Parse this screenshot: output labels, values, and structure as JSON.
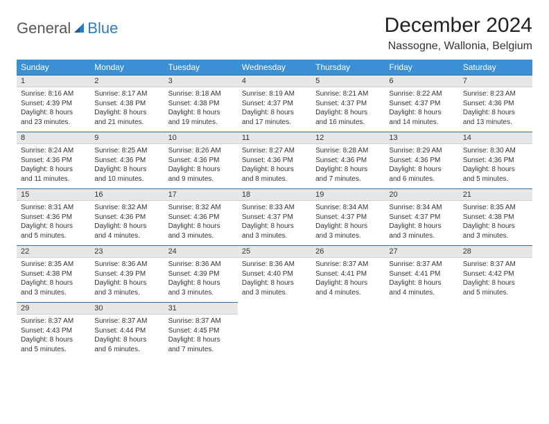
{
  "logo": {
    "general": "General",
    "blue": "Blue"
  },
  "title": "December 2024",
  "location": "Nassogne, Wallonia, Belgium",
  "colors": {
    "header_bg": "#3b8fd4",
    "header_text": "#ffffff",
    "daynum_bg": "#e7e7e7",
    "row_border": "#2f6fa8",
    "logo_blue": "#2f7bbf",
    "logo_gray": "#555555"
  },
  "weekdays": [
    "Sunday",
    "Monday",
    "Tuesday",
    "Wednesday",
    "Thursday",
    "Friday",
    "Saturday"
  ],
  "weeks": [
    [
      {
        "n": "1",
        "sunrise": "Sunrise: 8:16 AM",
        "sunset": "Sunset: 4:39 PM",
        "daylight": "Daylight: 8 hours and 23 minutes."
      },
      {
        "n": "2",
        "sunrise": "Sunrise: 8:17 AM",
        "sunset": "Sunset: 4:38 PM",
        "daylight": "Daylight: 8 hours and 21 minutes."
      },
      {
        "n": "3",
        "sunrise": "Sunrise: 8:18 AM",
        "sunset": "Sunset: 4:38 PM",
        "daylight": "Daylight: 8 hours and 19 minutes."
      },
      {
        "n": "4",
        "sunrise": "Sunrise: 8:19 AM",
        "sunset": "Sunset: 4:37 PM",
        "daylight": "Daylight: 8 hours and 17 minutes."
      },
      {
        "n": "5",
        "sunrise": "Sunrise: 8:21 AM",
        "sunset": "Sunset: 4:37 PM",
        "daylight": "Daylight: 8 hours and 16 minutes."
      },
      {
        "n": "6",
        "sunrise": "Sunrise: 8:22 AM",
        "sunset": "Sunset: 4:37 PM",
        "daylight": "Daylight: 8 hours and 14 minutes."
      },
      {
        "n": "7",
        "sunrise": "Sunrise: 8:23 AM",
        "sunset": "Sunset: 4:36 PM",
        "daylight": "Daylight: 8 hours and 13 minutes."
      }
    ],
    [
      {
        "n": "8",
        "sunrise": "Sunrise: 8:24 AM",
        "sunset": "Sunset: 4:36 PM",
        "daylight": "Daylight: 8 hours and 11 minutes."
      },
      {
        "n": "9",
        "sunrise": "Sunrise: 8:25 AM",
        "sunset": "Sunset: 4:36 PM",
        "daylight": "Daylight: 8 hours and 10 minutes."
      },
      {
        "n": "10",
        "sunrise": "Sunrise: 8:26 AM",
        "sunset": "Sunset: 4:36 PM",
        "daylight": "Daylight: 8 hours and 9 minutes."
      },
      {
        "n": "11",
        "sunrise": "Sunrise: 8:27 AM",
        "sunset": "Sunset: 4:36 PM",
        "daylight": "Daylight: 8 hours and 8 minutes."
      },
      {
        "n": "12",
        "sunrise": "Sunrise: 8:28 AM",
        "sunset": "Sunset: 4:36 PM",
        "daylight": "Daylight: 8 hours and 7 minutes."
      },
      {
        "n": "13",
        "sunrise": "Sunrise: 8:29 AM",
        "sunset": "Sunset: 4:36 PM",
        "daylight": "Daylight: 8 hours and 6 minutes."
      },
      {
        "n": "14",
        "sunrise": "Sunrise: 8:30 AM",
        "sunset": "Sunset: 4:36 PM",
        "daylight": "Daylight: 8 hours and 5 minutes."
      }
    ],
    [
      {
        "n": "15",
        "sunrise": "Sunrise: 8:31 AM",
        "sunset": "Sunset: 4:36 PM",
        "daylight": "Daylight: 8 hours and 5 minutes."
      },
      {
        "n": "16",
        "sunrise": "Sunrise: 8:32 AM",
        "sunset": "Sunset: 4:36 PM",
        "daylight": "Daylight: 8 hours and 4 minutes."
      },
      {
        "n": "17",
        "sunrise": "Sunrise: 8:32 AM",
        "sunset": "Sunset: 4:36 PM",
        "daylight": "Daylight: 8 hours and 3 minutes."
      },
      {
        "n": "18",
        "sunrise": "Sunrise: 8:33 AM",
        "sunset": "Sunset: 4:37 PM",
        "daylight": "Daylight: 8 hours and 3 minutes."
      },
      {
        "n": "19",
        "sunrise": "Sunrise: 8:34 AM",
        "sunset": "Sunset: 4:37 PM",
        "daylight": "Daylight: 8 hours and 3 minutes."
      },
      {
        "n": "20",
        "sunrise": "Sunrise: 8:34 AM",
        "sunset": "Sunset: 4:37 PM",
        "daylight": "Daylight: 8 hours and 3 minutes."
      },
      {
        "n": "21",
        "sunrise": "Sunrise: 8:35 AM",
        "sunset": "Sunset: 4:38 PM",
        "daylight": "Daylight: 8 hours and 3 minutes."
      }
    ],
    [
      {
        "n": "22",
        "sunrise": "Sunrise: 8:35 AM",
        "sunset": "Sunset: 4:38 PM",
        "daylight": "Daylight: 8 hours and 3 minutes."
      },
      {
        "n": "23",
        "sunrise": "Sunrise: 8:36 AM",
        "sunset": "Sunset: 4:39 PM",
        "daylight": "Daylight: 8 hours and 3 minutes."
      },
      {
        "n": "24",
        "sunrise": "Sunrise: 8:36 AM",
        "sunset": "Sunset: 4:39 PM",
        "daylight": "Daylight: 8 hours and 3 minutes."
      },
      {
        "n": "25",
        "sunrise": "Sunrise: 8:36 AM",
        "sunset": "Sunset: 4:40 PM",
        "daylight": "Daylight: 8 hours and 3 minutes."
      },
      {
        "n": "26",
        "sunrise": "Sunrise: 8:37 AM",
        "sunset": "Sunset: 4:41 PM",
        "daylight": "Daylight: 8 hours and 4 minutes."
      },
      {
        "n": "27",
        "sunrise": "Sunrise: 8:37 AM",
        "sunset": "Sunset: 4:41 PM",
        "daylight": "Daylight: 8 hours and 4 minutes."
      },
      {
        "n": "28",
        "sunrise": "Sunrise: 8:37 AM",
        "sunset": "Sunset: 4:42 PM",
        "daylight": "Daylight: 8 hours and 5 minutes."
      }
    ],
    [
      {
        "n": "29",
        "sunrise": "Sunrise: 8:37 AM",
        "sunset": "Sunset: 4:43 PM",
        "daylight": "Daylight: 8 hours and 5 minutes."
      },
      {
        "n": "30",
        "sunrise": "Sunrise: 8:37 AM",
        "sunset": "Sunset: 4:44 PM",
        "daylight": "Daylight: 8 hours and 6 minutes."
      },
      {
        "n": "31",
        "sunrise": "Sunrise: 8:37 AM",
        "sunset": "Sunset: 4:45 PM",
        "daylight": "Daylight: 8 hours and 7 minutes."
      },
      null,
      null,
      null,
      null
    ]
  ]
}
